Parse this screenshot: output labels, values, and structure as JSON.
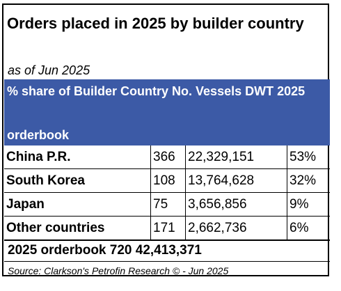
{
  "title": "Orders placed in 2025 by builder country",
  "subtitle": "as of Jun 2025",
  "header": {
    "line1": "% share of Builder Country No. Vessels DWT 2025",
    "line2": "orderbook",
    "color": "#3c5aa6"
  },
  "rows": [
    {
      "country": "China P.R.",
      "vessels": "366",
      "dwt": "22,329,151",
      "share": "53%"
    },
    {
      "country": "South Korea",
      "vessels": "108",
      "dwt": "13,764,628",
      "share": "32%"
    },
    {
      "country": "Japan",
      "vessels": "75",
      "dwt": "3,656,856",
      "share": "9%"
    },
    {
      "country": "Other countries",
      "vessels": "171",
      "dwt": "2,662,736",
      "share": "6%"
    }
  ],
  "total": "2025 orderbook 720 42,413,371",
  "source": "Source: Clarkson's Petrofin Research © - Jun 2025"
}
